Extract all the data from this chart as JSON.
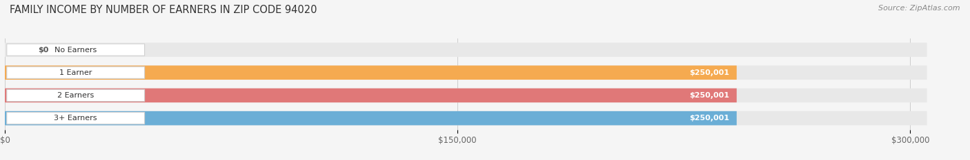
{
  "title": "FAMILY INCOME BY NUMBER OF EARNERS IN ZIP CODE 94020",
  "source": "Source: ZipAtlas.com",
  "categories": [
    "No Earners",
    "1 Earner",
    "2 Earners",
    "3+ Earners"
  ],
  "values": [
    0,
    250001,
    250001,
    250001
  ],
  "bar_colors": [
    "#f4a0b5",
    "#f5aa50",
    "#e07878",
    "#6baed6"
  ],
  "bar_bg_color": "#e8e8e8",
  "value_labels": [
    "$0",
    "$250,001",
    "$250,001",
    "$250,001"
  ],
  "x_ticks": [
    0,
    150000,
    300000
  ],
  "x_tick_labels": [
    "$0",
    "$150,000",
    "$300,000"
  ],
  "xmax": 315000,
  "background_color": "#f5f5f5",
  "title_fontsize": 10.5,
  "source_fontsize": 8,
  "bar_label_fontsize": 8,
  "value_label_fontsize": 8,
  "tick_fontsize": 8.5
}
